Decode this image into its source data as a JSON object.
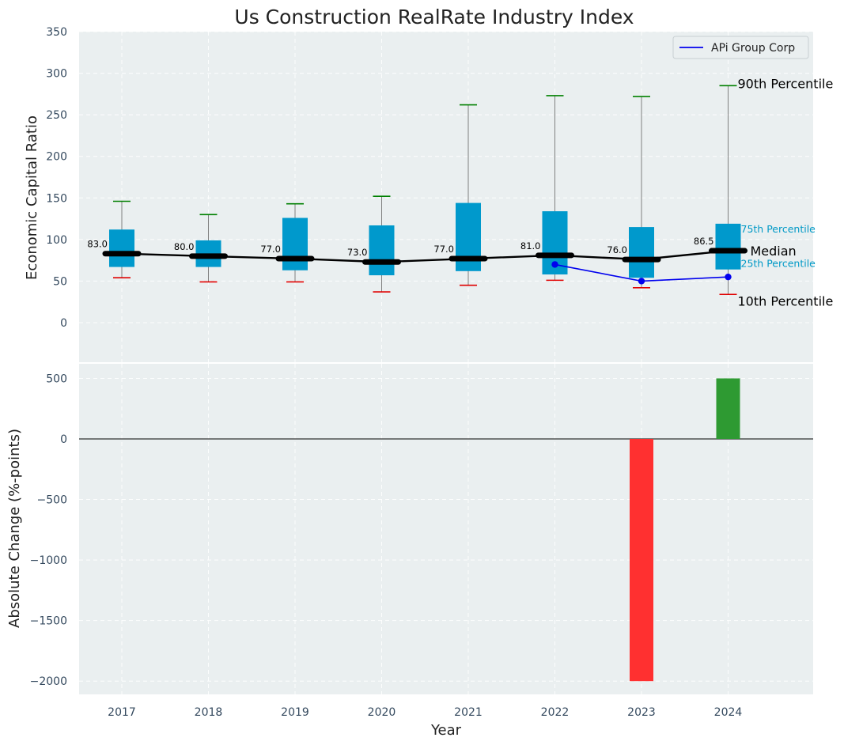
{
  "chart_data": [
    {
      "type": "box",
      "title": "Us Construction RealRate Industry Index",
      "xlabel": "",
      "ylabel": "Economic Capital Ratio",
      "ylim": [
        -50,
        350
      ],
      "yticks": [
        0,
        50,
        100,
        150,
        200,
        250,
        300,
        350
      ],
      "grid": true,
      "legend_position": "top-right",
      "categories": [
        "2017",
        "2018",
        "2019",
        "2020",
        "2021",
        "2022",
        "2023",
        "2024"
      ],
      "p10": [
        54,
        49,
        49,
        37,
        45,
        51,
        42,
        34
      ],
      "p25": [
        67,
        67,
        63,
        57,
        62,
        58,
        54,
        64
      ],
      "median": [
        83.0,
        80.0,
        77.0,
        73.0,
        77.0,
        81.0,
        76.0,
        86.5
      ],
      "median_labels": [
        "83.0",
        "80.0",
        "77.0",
        "73.0",
        "77.0",
        "81.0",
        "76.0",
        "86.5"
      ],
      "p75": [
        112,
        99,
        126,
        117,
        144,
        134,
        115,
        119
      ],
      "p90": [
        146,
        130,
        143,
        152,
        262,
        273,
        272,
        285
      ],
      "series": [
        {
          "name": "APi Group Corp",
          "x": [
            "2022",
            "2023",
            "2024"
          ],
          "values": [
            70,
            50,
            55
          ],
          "color": "#0000ee"
        }
      ],
      "annotations": {
        "p90": "90th Percentile",
        "p75": "75th Percentile",
        "median": "Median",
        "p25": "25th Percentile",
        "p10": "10th Percentile"
      },
      "colors": {
        "box": "#0099cc",
        "median": "#000000",
        "p90_cap": "#008000",
        "p10_cap": "#e00000",
        "whisker": "#808080"
      }
    },
    {
      "type": "bar",
      "title": "",
      "xlabel": "Year",
      "ylabel": "Absolute Change (%-points)",
      "ylim": [
        -2120,
        620
      ],
      "yticks": [
        -2000,
        -1500,
        -1000,
        -500,
        0,
        500
      ],
      "categories": [
        "2017",
        "2018",
        "2019",
        "2020",
        "2021",
        "2022",
        "2023",
        "2024"
      ],
      "values": [
        null,
        null,
        null,
        null,
        null,
        null,
        -2000,
        500
      ],
      "colors": {
        "positive": "#2e9a32",
        "negative": "#ff3030"
      },
      "grid": true
    }
  ]
}
